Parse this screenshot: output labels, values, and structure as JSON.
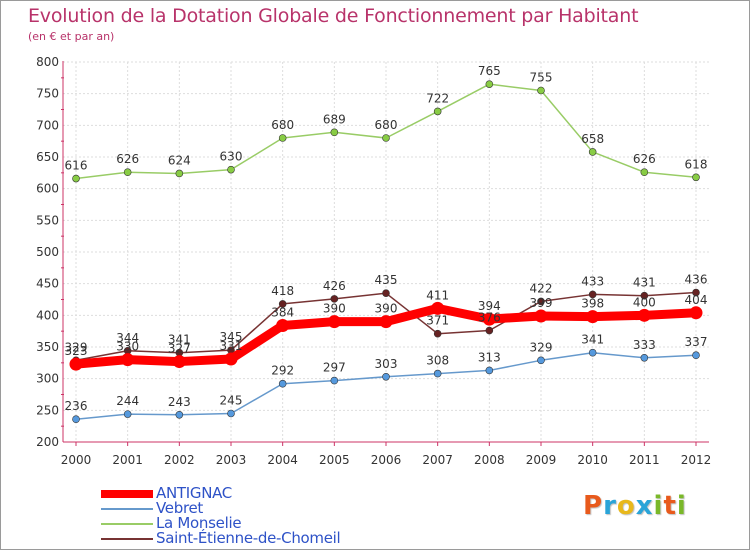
{
  "title": "Evolution de la Dotation Globale de Fonctionnement par Habitant",
  "subtitle": "(en € et par an)",
  "logo": {
    "text": "Proxiti",
    "colors": [
      "#e85a1c",
      "#2aa4d8",
      "#e8b81c",
      "#2aa4d8",
      "#7ab829",
      "#e85a1c",
      "#7ab829"
    ]
  },
  "chart_data": {
    "type": "line",
    "x": [
      "2000",
      "2001",
      "2002",
      "2003",
      "2004",
      "2005",
      "2006",
      "2007",
      "2008",
      "2009",
      "2010",
      "2011",
      "2012"
    ],
    "ylim": [
      200,
      800
    ],
    "yticks": [
      "200",
      "250",
      "300",
      "350",
      "400",
      "450",
      "500",
      "550",
      "600",
      "650",
      "700",
      "750",
      "800"
    ],
    "grid": true,
    "legend_position": "bottom-left",
    "series": [
      {
        "name": "ANTIGNAC",
        "color": "#ff0000",
        "values": [
          323,
          330,
          327,
          331,
          384,
          390,
          390,
          411,
          394,
          399,
          398,
          400,
          404
        ]
      },
      {
        "name": "Vebret",
        "color": "#6699cc",
        "values": [
          236,
          244,
          243,
          245,
          292,
          297,
          303,
          308,
          313,
          329,
          341,
          333,
          337
        ]
      },
      {
        "name": "La Monselie",
        "color": "#99cc66",
        "values": [
          616,
          626,
          624,
          630,
          680,
          689,
          680,
          722,
          765,
          755,
          658,
          626,
          618
        ]
      },
      {
        "name": "Saint-Étienne-de-Chomeil",
        "color": "#773333",
        "values": [
          329,
          344,
          341,
          345,
          418,
          426,
          435,
          371,
          376,
          422,
          433,
          431,
          436
        ]
      }
    ]
  }
}
